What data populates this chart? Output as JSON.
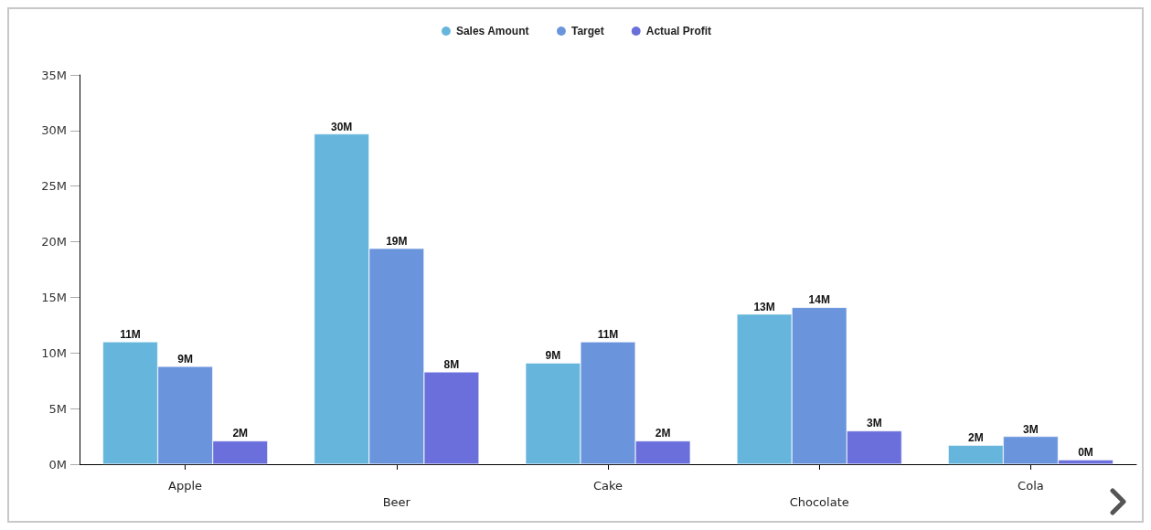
{
  "chart_data": {
    "type": "bar",
    "categories": [
      "Apple",
      "Beer",
      "Cake",
      "Chocolate",
      "Cola"
    ],
    "series": [
      {
        "name": "Sales Amount",
        "color": "#66b5dc",
        "values": [
          11.0,
          29.7,
          9.1,
          13.5,
          1.7
        ],
        "value_labels": [
          "11M",
          "30M",
          "9M",
          "13M",
          "2M"
        ]
      },
      {
        "name": "Target",
        "color": "#6a95dc",
        "values": [
          8.8,
          19.4,
          11.0,
          14.1,
          2.5
        ],
        "value_labels": [
          "9M",
          "19M",
          "11M",
          "14M",
          "3M"
        ]
      },
      {
        "name": "Actual Profit",
        "color": "#6a6fdb",
        "values": [
          2.1,
          8.3,
          2.1,
          3.0,
          0.4
        ],
        "value_labels": [
          "2M",
          "8M",
          "2M",
          "3M",
          "0M"
        ]
      }
    ],
    "ylim": [
      0,
      35
    ],
    "yticks": [
      {
        "value": 0,
        "label": "0M"
      },
      {
        "value": 5,
        "label": "5M"
      },
      {
        "value": 10,
        "label": "10M"
      },
      {
        "value": 15,
        "label": "15M"
      },
      {
        "value": 20,
        "label": "20M"
      },
      {
        "value": 25,
        "label": "25M"
      },
      {
        "value": 30,
        "label": "30M"
      },
      {
        "value": 35,
        "label": "35M"
      }
    ],
    "grid": false,
    "legend": "top"
  }
}
